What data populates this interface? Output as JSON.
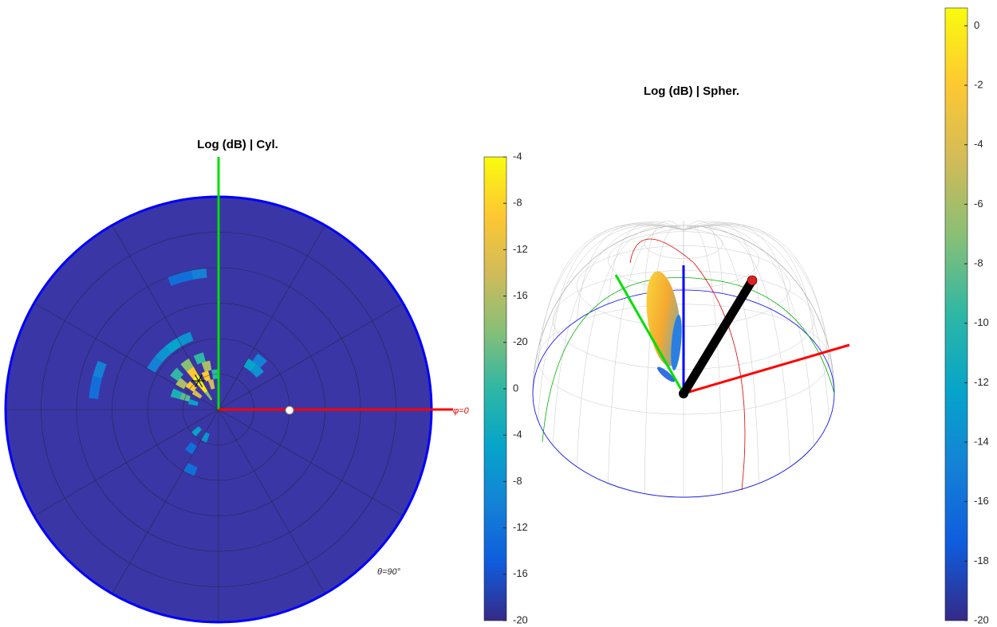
{
  "chart_data": [
    {
      "type": "polar-heatmap",
      "title": "Log (dB) | Cyl.",
      "annotations": [
        "θ=90°",
        "φ=0"
      ],
      "clim": [
        -20,
        -4
      ],
      "cells": [
        [
          15,
          125,
          -4
        ],
        [
          11,
          125,
          -5
        ],
        [
          19,
          125,
          -6
        ],
        [
          15,
          110,
          -6
        ],
        [
          15,
          140,
          -6
        ],
        [
          11,
          105,
          -8
        ],
        [
          11,
          145,
          -8
        ],
        [
          19,
          105,
          -9
        ],
        [
          19,
          145,
          -9
        ],
        [
          23,
          125,
          -10
        ],
        [
          7,
          125,
          -10
        ],
        [
          23,
          110,
          -12
        ],
        [
          23,
          140,
          -12
        ],
        [
          15,
          160,
          -11
        ],
        [
          15,
          95,
          -12
        ],
        [
          19,
          160,
          -13
        ],
        [
          11,
          165,
          -14
        ],
        [
          33,
          115,
          -15
        ],
        [
          33,
          125,
          -14
        ],
        [
          33,
          135,
          -15
        ],
        [
          33,
          145,
          -16
        ],
        [
          23,
          45,
          -15
        ],
        [
          23,
          55,
          -14
        ],
        [
          27,
          50,
          -16
        ],
        [
          58,
          100,
          -16
        ],
        [
          58,
          106,
          -17
        ],
        [
          53,
          163,
          -16
        ],
        [
          53,
          170,
          -17
        ],
        [
          13,
          225,
          -14
        ],
        [
          13,
          245,
          -15
        ],
        [
          20,
          235,
          -17
        ],
        [
          28,
          245,
          -17
        ]
      ],
      "colorbar_lim": [
        0,
        10
      ],
      "colorbar_ticks": [
        {
          "value": 10,
          "label": "-4"
        },
        {
          "value": 9,
          "label": "-8"
        },
        {
          "value": 8,
          "label": "-12"
        },
        {
          "value": 7,
          "label": "-16"
        },
        {
          "value": 6,
          "label": "-20"
        },
        {
          "value": 5,
          "label": "0"
        },
        {
          "value": 4,
          "label": "-4"
        },
        {
          "value": 3,
          "label": "-8"
        },
        {
          "value": 2,
          "label": "-12"
        },
        {
          "value": 1,
          "label": "-16"
        },
        {
          "value": 0,
          "label": "-20"
        }
      ]
    },
    {
      "type": "sphere-pattern",
      "title": "Log (dB) | Spher.",
      "colorbar_lim": [
        -20,
        0.6
      ],
      "colorbar_ticks": [
        0,
        -2,
        -4,
        -6,
        -8,
        -10,
        -12,
        -14,
        -16,
        -18,
        -20
      ]
    }
  ]
}
